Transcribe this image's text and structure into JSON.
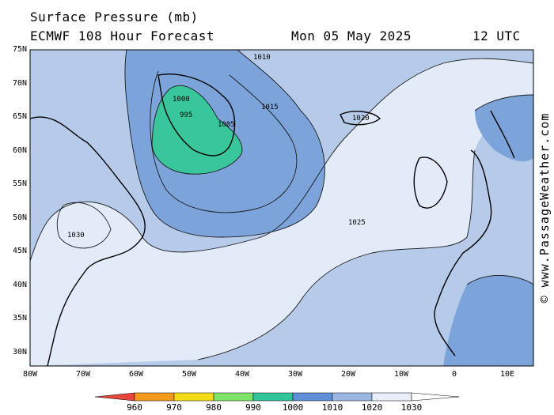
{
  "header": {
    "title": "Surface Pressure (mb)",
    "model": "ECMWF 108 Hour Forecast",
    "date": "Mon 05 May 2025",
    "time": "12 UTC"
  },
  "credit": "© www.PassageWeather.com",
  "lat_labels": [
    "75N",
    "70N",
    "65N",
    "60N",
    "55N",
    "50N",
    "45N",
    "40N",
    "35N",
    "30N"
  ],
  "lon_labels": [
    "80W",
    "70W",
    "60W",
    "50W",
    "40W",
    "30W",
    "20W",
    "10W",
    "0",
    "10E"
  ],
  "colorbar": {
    "labels": [
      "960",
      "970",
      "980",
      "990",
      "1000",
      "1010",
      "1020",
      "1030"
    ],
    "colors": [
      "#e8453c",
      "#f39a1e",
      "#f4dc18",
      "#7ee26b",
      "#33c39a",
      "#5f8fd6",
      "#9cb8e2",
      "#e8eefa"
    ]
  },
  "regions": {
    "open_ocean_low_1025": "#e3ebf8",
    "mid_pressure_1015_1020": "#b6cbe9",
    "low_pressure_1005_1010": "#7ca3da",
    "very_low_below_995": "#38c69a"
  },
  "isobar_labels": [
    "1010",
    "1015",
    "1020",
    "1025",
    "1030",
    "1000",
    "995",
    "1005"
  ]
}
